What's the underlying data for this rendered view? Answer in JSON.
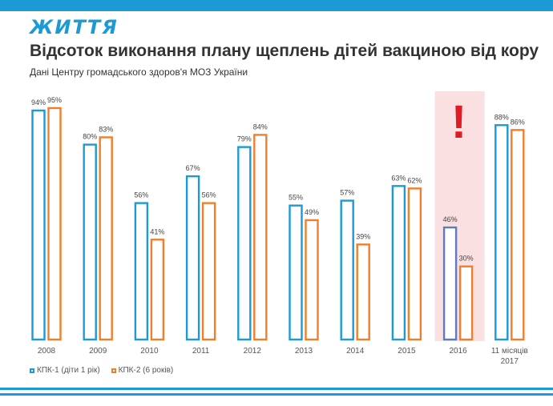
{
  "header": {
    "logo_text": "ЖИТТЯ",
    "title": "Відсоток виконання плану щеплень дітей вакциною від кору",
    "subtitle": "Дані Центру громадського здоров'я МОЗ України"
  },
  "colors": {
    "kpk1": "#1c9ad6",
    "kpk2": "#f07f2c",
    "kpk1_highlight": "#5a7cc2",
    "highlight_bg": "#fbe0e2",
    "alert": "#e11b24",
    "brand": "#1c9ad6"
  },
  "chart_data": {
    "type": "bar",
    "title": "Відсоток виконання плану щеплень дітей вакциною від кору",
    "subtitle": "Дані Центру громадського здоров'я МОЗ України",
    "categories": [
      "2008",
      "2009",
      "2010",
      "2011",
      "2012",
      "2013",
      "2014",
      "2015",
      "2016",
      "11 місяців 2017"
    ],
    "series": [
      {
        "name": "КПК-1 (діти 1 рік)",
        "values": [
          94,
          80,
          56,
          67,
          79,
          55,
          57,
          63,
          46,
          88
        ]
      },
      {
        "name": "КПК-2 (6 років)",
        "values": [
          95,
          83,
          41,
          56,
          84,
          49,
          39,
          62,
          30,
          86
        ]
      }
    ],
    "value_labels": [
      [
        "94%",
        "80%",
        "56%",
        "67%",
        "79%",
        "55%",
        "57%",
        "63%",
        "46%",
        "88%"
      ],
      [
        "95%",
        "83%",
        "41%",
        "56%",
        "84%",
        "49%",
        "39%",
        "62%",
        "30%",
        "86%"
      ]
    ],
    "unit": "%",
    "ylim": [
      0,
      100
    ],
    "grid": false,
    "legend_position": "bottom-left",
    "highlighted_category": "2016",
    "annotation": "!"
  }
}
